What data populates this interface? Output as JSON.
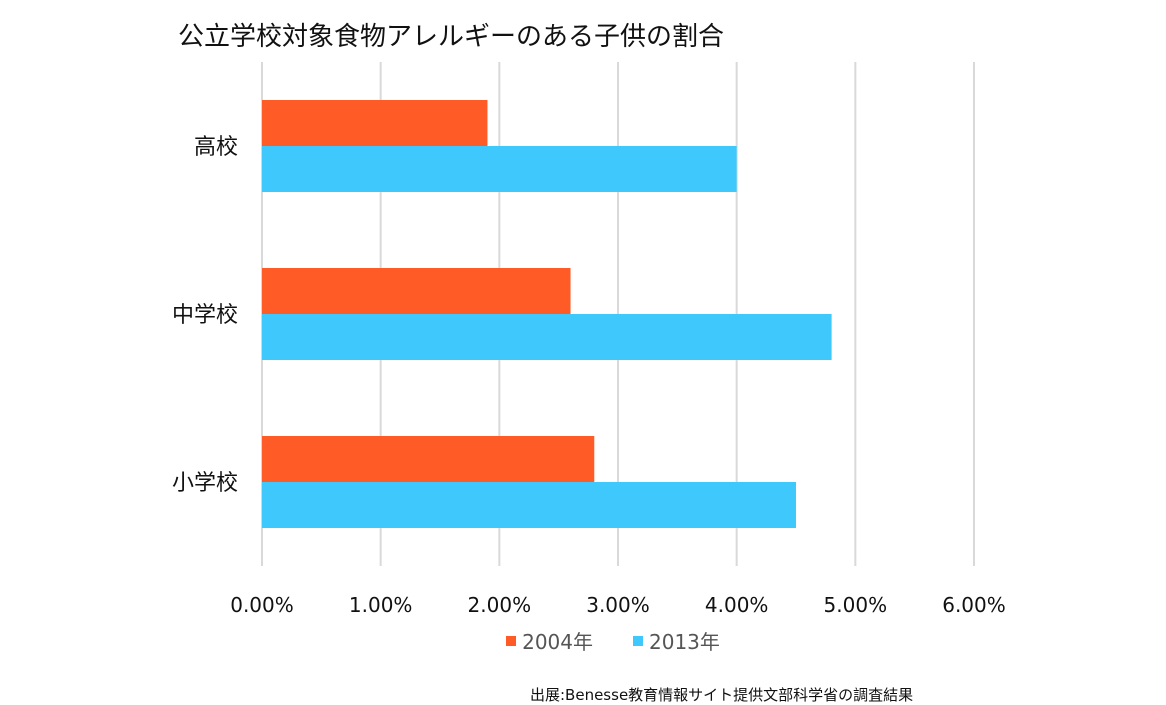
{
  "chart_data": {
    "type": "bar",
    "orientation": "horizontal",
    "title": "公立学校対象食物アレルギーのある子供の割合",
    "categories": [
      "高校",
      "中学校",
      "小学校"
    ],
    "series": [
      {
        "name": "2004年",
        "color": "#FF5B26",
        "values": [
          1.9,
          2.6,
          2.8
        ]
      },
      {
        "name": "2013年",
        "color": "#3FC8FB",
        "values": [
          4.0,
          4.8,
          4.5
        ]
      }
    ],
    "xlim": [
      0,
      6
    ],
    "x_ticks": [
      "0.00%",
      "1.00%",
      "2.00%",
      "3.00%",
      "4.00%",
      "5.00%",
      "6.00%"
    ],
    "value_unit": "%",
    "grid": "vertical",
    "legend_position": "bottom",
    "xlabel": "",
    "ylabel": ""
  },
  "source_note": "出展:Benesse教育情報サイト提供文部科学省の調査結果"
}
